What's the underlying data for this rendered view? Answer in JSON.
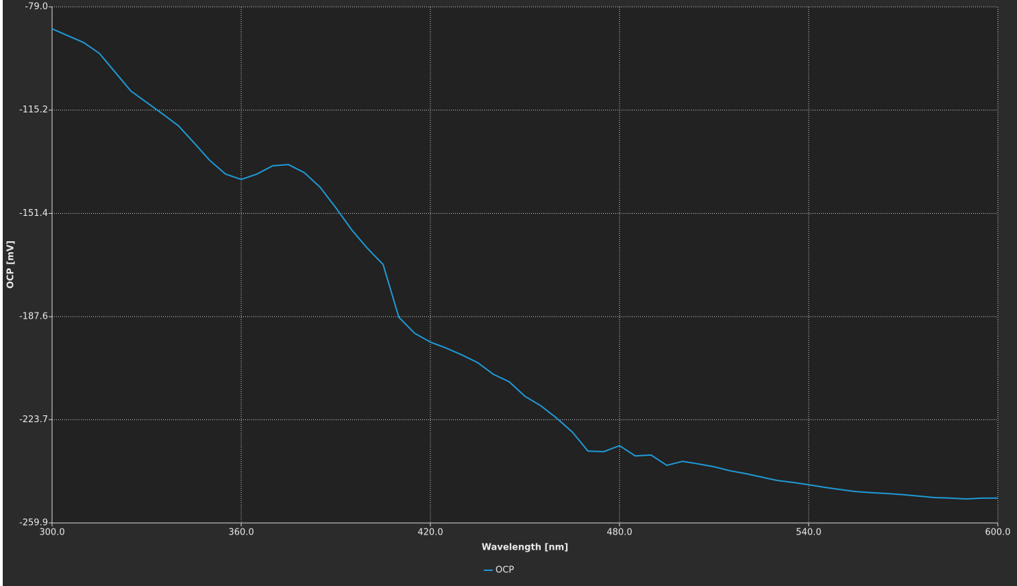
{
  "chart_data": {
    "type": "line",
    "x_label": "Wavelength [nm]",
    "y_label": "OCP [mV]",
    "x": [
      300,
      305,
      310,
      315,
      320,
      325,
      330,
      335,
      340,
      345,
      350,
      355,
      360,
      365,
      370,
      375,
      380,
      385,
      390,
      395,
      400,
      405,
      410,
      415,
      420,
      425,
      430,
      435,
      440,
      445,
      450,
      455,
      460,
      465,
      470,
      475,
      480,
      485,
      490,
      495,
      500,
      505,
      510,
      515,
      520,
      525,
      530,
      535,
      540,
      545,
      550,
      555,
      560,
      565,
      570,
      575,
      580,
      585,
      590,
      595,
      600
    ],
    "series": [
      {
        "name": "OCP",
        "color": "#1f9ad6",
        "values": [
          -86.7,
          -89.1,
          -91.5,
          -95.3,
          -101.9,
          -108.5,
          -112.5,
          -116.5,
          -120.6,
          -126.6,
          -132.8,
          -137.6,
          -139.5,
          -137.6,
          -134.7,
          -134.3,
          -137.1,
          -142.2,
          -149.4,
          -157.1,
          -163.6,
          -169.3,
          -187.8,
          -193.4,
          -196.5,
          -198.6,
          -201.0,
          -203.7,
          -207.8,
          -210.4,
          -215.5,
          -218.8,
          -223.1,
          -228.0,
          -234.7,
          -234.9,
          -232.8,
          -236.4,
          -236.1,
          -239.7,
          -238.3,
          -239.2,
          -240.2,
          -241.6,
          -242.6,
          -243.8,
          -245.0,
          -245.7,
          -246.5,
          -247.4,
          -248.2,
          -248.9,
          -249.3,
          -249.6,
          -250.0,
          -250.5,
          -251.0,
          -251.2,
          -251.5,
          -251.2,
          -251.2
        ]
      }
    ],
    "xlim": [
      300,
      600
    ],
    "xticks": [
      {
        "value": 300,
        "label": "300.0"
      },
      {
        "value": 360,
        "label": "360.0"
      },
      {
        "value": 420,
        "label": "420.0"
      },
      {
        "value": 480,
        "label": "480.0"
      },
      {
        "value": 540,
        "label": "540.0"
      },
      {
        "value": 600,
        "label": "600.0"
      }
    ],
    "ylim": [
      -259.9,
      -79
    ],
    "yticks": [
      {
        "value": -79,
        "label": "-79.0"
      },
      -115.2,
      -151.4,
      -187.6,
      -223.7,
      -259.9
    ],
    "grid": true,
    "legend": "bottom"
  }
}
